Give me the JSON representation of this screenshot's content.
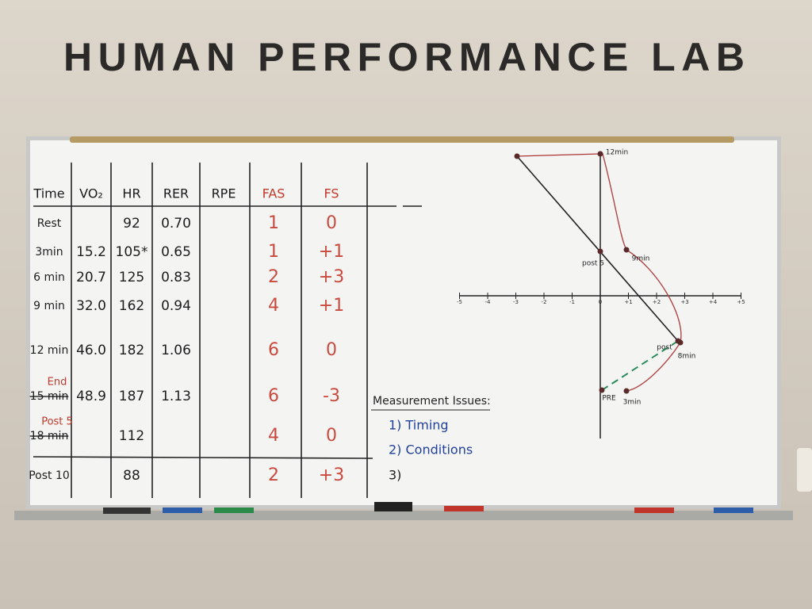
{
  "header": {
    "title": "HUMAN PERFORMANCE LAB"
  },
  "table": {
    "columns": [
      "Time",
      "VO₂",
      "HR",
      "RER",
      "RPE",
      "FAS",
      "FS"
    ],
    "rows": [
      [
        "Rest",
        null,
        "92",
        "0.70",
        null,
        "1",
        "0"
      ],
      [
        "3min",
        "15.2",
        "105*",
        "0.65",
        null,
        "1",
        "+1"
      ],
      [
        "6 min",
        "20.7",
        "125",
        "0.83",
        null,
        "2",
        "+3"
      ],
      [
        "9 min",
        "32.0",
        "162",
        "0.94",
        null,
        "4",
        "+1"
      ],
      [
        "12 min",
        "46.0",
        "182",
        "1.06",
        null,
        "6",
        "0"
      ],
      [
        "15 min",
        "48.9",
        "187",
        "1.13",
        null,
        "6",
        "-3"
      ],
      [
        "18 min",
        null,
        "112",
        null,
        null,
        "4",
        "0"
      ],
      [
        "Post 10",
        null,
        "88",
        null,
        null,
        "2",
        "+3"
      ]
    ],
    "row_notes": [
      null,
      null,
      null,
      null,
      null,
      "End",
      "Post 5",
      null
    ]
  },
  "notes": {
    "title": "Measurement Issues:",
    "items": [
      "1) Timing",
      "2) Conditions",
      "3)"
    ]
  },
  "graph": {
    "x_ticks": [
      "-5",
      "-4",
      "-3",
      "-2",
      "-1",
      "0",
      "+1",
      "+2",
      "+3",
      "+4",
      "+5"
    ],
    "points": [
      "12min",
      "9min",
      "post 5",
      "post",
      "8min",
      "PRE",
      "3min"
    ]
  }
}
